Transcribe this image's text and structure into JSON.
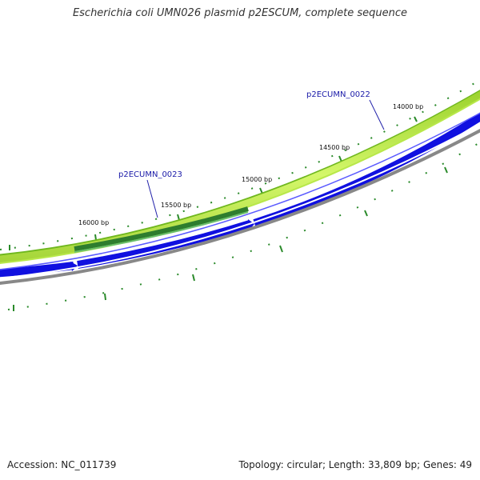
{
  "title": "Escherichia coli UMN026 plasmid p2ESCUM, complete sequence",
  "footer": {
    "accession": "Accession: NC_011739",
    "summary": "Topology: circular; Length: 33,809 bp; Genes: 49"
  },
  "map": {
    "colors": {
      "outer_ring": "#7fbf2a",
      "outer_ring_fill": "#c6f25a",
      "gene_highlight": "#2e7d2e",
      "forward_genes": "#1010e0",
      "backbone": "#888888",
      "tick": "#2a8a2a",
      "label_line": "#2222aa"
    },
    "ruler_labels": [
      "16000 bp",
      "15500 bp",
      "15000 bp",
      "14500 bp",
      "14000 bp"
    ],
    "gene_labels": [
      "p2ECUMN_0023",
      "p2ECUMN_0022"
    ]
  }
}
